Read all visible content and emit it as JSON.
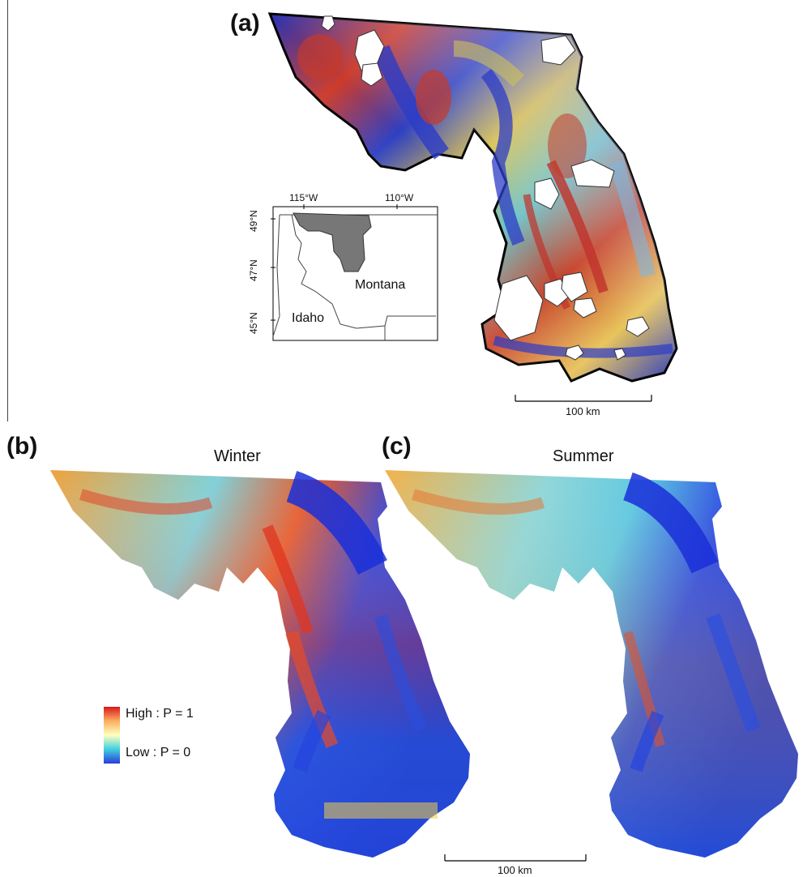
{
  "figure": {
    "panels": [
      {
        "label": "(a)"
      },
      {
        "label": "(b)",
        "title": "Winter"
      },
      {
        "label": "(c)",
        "title": "Summer"
      }
    ],
    "scale_bar_top": "100 km",
    "scale_bar_bottom": "100 km",
    "inset": {
      "lon_labels": [
        "115°W",
        "110°W"
      ],
      "lat_labels": [
        "49°N",
        "47°N",
        "45°N"
      ],
      "states": [
        "Montana",
        "Idaho"
      ]
    },
    "legend": {
      "high": "High : P = 1",
      "low": "Low : P = 0",
      "colors": [
        "#d7191c",
        "#fdae61",
        "#ffffbf",
        "#3fd0e0",
        "#2b3bd9"
      ]
    }
  }
}
